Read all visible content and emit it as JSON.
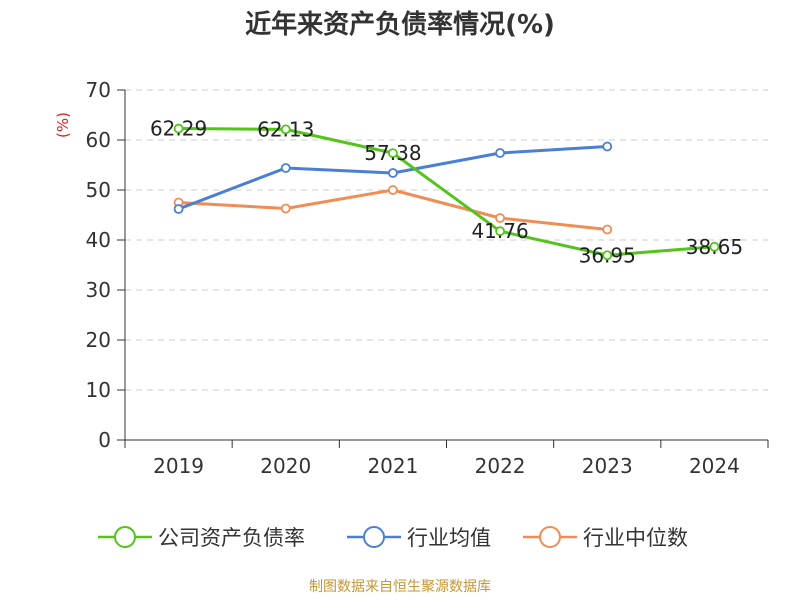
{
  "chart_data": {
    "type": "line",
    "title": "近年来资产负债率情况(%)",
    "ylabel": "(%)",
    "xlabel": "",
    "ylim": [
      0,
      70
    ],
    "yticks": [
      0,
      10,
      20,
      30,
      40,
      50,
      60,
      70
    ],
    "categories": [
      "2019",
      "2020",
      "2021",
      "2022",
      "2023",
      "2024"
    ],
    "grid": "horizontal-dashed",
    "legend_position": "bottom",
    "series": [
      {
        "name": "公司资产负债率",
        "color": "#52c41a",
        "values": [
          62.29,
          62.13,
          57.38,
          41.76,
          36.95,
          38.65
        ],
        "labels": [
          "62.29",
          "62.13",
          "57.38",
          "41.76",
          "36.95",
          "38.65"
        ]
      },
      {
        "name": "行业均值",
        "color": "#4a7fd6",
        "values": [
          46.2,
          54.4,
          53.4,
          57.4,
          58.7,
          null
        ]
      },
      {
        "name": "行业中位数",
        "color": "#f28c55",
        "values": [
          47.5,
          46.3,
          50.0,
          44.4,
          42.1,
          null
        ]
      }
    ]
  },
  "source": "制图数据来自恒生聚源数据库",
  "colors": {
    "axis": "#333333",
    "grid": "#cccccc",
    "ylabel": "#e02020",
    "source": "#c89632"
  }
}
